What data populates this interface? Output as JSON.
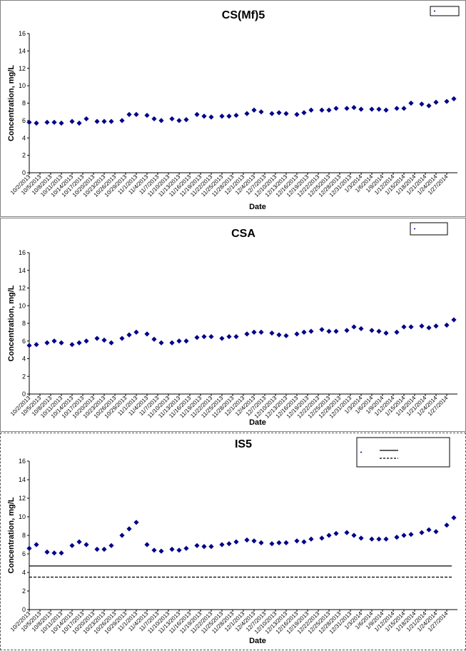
{
  "chart_data": [
    {
      "type": "scatter",
      "title": "CS(Mf)5",
      "xlabel": "Date",
      "ylabel": "Concentration, mg/L",
      "ylim": [
        0,
        16
      ],
      "yticks": [
        0,
        2,
        4,
        6,
        8,
        10,
        12,
        14,
        16
      ],
      "xlim": [
        "10/2/2013",
        "1/30/2014"
      ],
      "x_tick_labels": [
        "10/2/2013",
        "10/5/2013",
        "10/8/2013",
        "10/11/2013",
        "10/14/2013",
        "10/17/2013",
        "10/20/2013",
        "10/23/2013",
        "10/26/2013",
        "10/29/2013",
        "11/1/2013",
        "11/4/2013",
        "11/7/2013",
        "11/10/2013",
        "11/13/2013",
        "11/16/2013",
        "11/19/2013",
        "11/22/2013",
        "11/25/2013",
        "11/28/2013",
        "12/1/2013",
        "12/4/2013",
        "12/7/2013",
        "12/10/2013",
        "12/13/2013",
        "12/16/2013",
        "12/19/2013",
        "12/22/2013",
        "12/25/2013",
        "12/28/2013",
        "12/31/2013",
        "1/3/2014",
        "1/6/2014",
        "1/9/2014",
        "1/12/2014",
        "1/15/2014",
        "1/18/2014",
        "1/21/2014",
        "1/24/2014",
        "1/27/2014"
      ],
      "grid": false,
      "legend_position": "top-right",
      "series": [
        {
          "color": "#00008B",
          "marker": "diamond",
          "points": [
            [
              "10/2/2013",
              5.8
            ],
            [
              "10/4/2013",
              5.7
            ],
            [
              "10/7/2013",
              5.8
            ],
            [
              "10/9/2013",
              5.8
            ],
            [
              "10/11/2013",
              5.7
            ],
            [
              "10/14/2013",
              5.9
            ],
            [
              "10/16/2013",
              5.7
            ],
            [
              "10/18/2013",
              6.2
            ],
            [
              "10/21/2013",
              5.9
            ],
            [
              "10/23/2013",
              5.9
            ],
            [
              "10/25/2013",
              5.9
            ],
            [
              "10/28/2013",
              6.0
            ],
            [
              "10/30/2013",
              6.7
            ],
            [
              "11/1/2013",
              6.7
            ],
            [
              "11/4/2013",
              6.6
            ],
            [
              "11/6/2013",
              6.2
            ],
            [
              "11/8/2013",
              6.0
            ],
            [
              "11/11/2013",
              6.2
            ],
            [
              "11/13/2013",
              6.0
            ],
            [
              "11/15/2013",
              6.1
            ],
            [
              "11/18/2013",
              6.7
            ],
            [
              "11/20/2013",
              6.5
            ],
            [
              "11/22/2013",
              6.4
            ],
            [
              "11/25/2013",
              6.5
            ],
            [
              "11/27/2013",
              6.5
            ],
            [
              "11/29/2013",
              6.6
            ],
            [
              "12/2/2013",
              6.8
            ],
            [
              "12/4/2013",
              7.2
            ],
            [
              "12/6/2013",
              7.0
            ],
            [
              "12/9/2013",
              6.8
            ],
            [
              "12/11/2013",
              6.9
            ],
            [
              "12/13/2013",
              6.8
            ],
            [
              "12/16/2013",
              6.7
            ],
            [
              "12/18/2013",
              6.9
            ],
            [
              "12/20/2013",
              7.2
            ],
            [
              "12/23/2013",
              7.2
            ],
            [
              "12/25/2013",
              7.2
            ],
            [
              "12/27/2013",
              7.4
            ],
            [
              "12/30/2013",
              7.4
            ],
            [
              "1/1/2014",
              7.5
            ],
            [
              "1/3/2014",
              7.3
            ],
            [
              "1/6/2014",
              7.3
            ],
            [
              "1/8/2014",
              7.3
            ],
            [
              "1/10/2014",
              7.2
            ],
            [
              "1/13/2014",
              7.4
            ],
            [
              "1/15/2014",
              7.4
            ],
            [
              "1/17/2014",
              8.0
            ],
            [
              "1/20/2014",
              7.9
            ],
            [
              "1/22/2014",
              7.7
            ],
            [
              "1/24/2014",
              8.1
            ],
            [
              "1/27/2014",
              8.2
            ],
            [
              "1/29/2014",
              8.5
            ]
          ]
        }
      ]
    },
    {
      "type": "scatter",
      "title": "CSA",
      "xlabel": "Date",
      "ylabel": "Concentration, mg/L",
      "ylim": [
        0,
        16
      ],
      "yticks": [
        0,
        2,
        4,
        6,
        8,
        10,
        12,
        14,
        16
      ],
      "xlim": [
        "10/2/2013",
        "1/30/2014"
      ],
      "x_tick_labels": [
        "10/2/2013",
        "10/5/2013",
        "10/8/2013",
        "10/11/2013",
        "10/14/2013",
        "10/17/2013",
        "10/20/2013",
        "10/23/2013",
        "10/26/2013",
        "10/29/2013",
        "11/1/2013",
        "11/4/2013",
        "11/7/2013",
        "11/10/2013",
        "11/13/2013",
        "11/16/2013",
        "11/19/2013",
        "11/22/2013",
        "11/25/2013",
        "11/28/2013",
        "12/1/2013",
        "12/4/2013",
        "12/7/2013",
        "12/10/2013",
        "12/13/2013",
        "12/16/2013",
        "12/19/2013",
        "12/22/2013",
        "12/25/2013",
        "12/28/2013",
        "12/31/2013",
        "1/3/2014",
        "1/6/2014",
        "1/9/2014",
        "1/12/2014",
        "1/15/2014",
        "1/18/2014",
        "1/21/2014",
        "1/24/2014",
        "1/27/2014"
      ],
      "grid": false,
      "legend_position": "top-right",
      "series": [
        {
          "color": "#00008B",
          "marker": "diamond",
          "points": [
            [
              "10/2/2013",
              5.5
            ],
            [
              "10/4/2013",
              5.6
            ],
            [
              "10/7/2013",
              5.8
            ],
            [
              "10/9/2013",
              6.0
            ],
            [
              "10/11/2013",
              5.8
            ],
            [
              "10/14/2013",
              5.6
            ],
            [
              "10/16/2013",
              5.8
            ],
            [
              "10/18/2013",
              6.0
            ],
            [
              "10/21/2013",
              6.3
            ],
            [
              "10/23/2013",
              6.1
            ],
            [
              "10/25/2013",
              5.8
            ],
            [
              "10/28/2013",
              6.3
            ],
            [
              "10/30/2013",
              6.7
            ],
            [
              "11/1/2013",
              7.0
            ],
            [
              "11/4/2013",
              6.8
            ],
            [
              "11/6/2013",
              6.2
            ],
            [
              "11/8/2013",
              5.8
            ],
            [
              "11/11/2013",
              5.8
            ],
            [
              "11/13/2013",
              6.0
            ],
            [
              "11/15/2013",
              6.0
            ],
            [
              "11/18/2013",
              6.4
            ],
            [
              "11/20/2013",
              6.5
            ],
            [
              "11/22/2013",
              6.5
            ],
            [
              "11/25/2013",
              6.3
            ],
            [
              "11/27/2013",
              6.5
            ],
            [
              "11/29/2013",
              6.5
            ],
            [
              "12/2/2013",
              6.8
            ],
            [
              "12/4/2013",
              7.0
            ],
            [
              "12/6/2013",
              7.0
            ],
            [
              "12/9/2013",
              6.9
            ],
            [
              "12/11/2013",
              6.7
            ],
            [
              "12/13/2013",
              6.6
            ],
            [
              "12/16/2013",
              6.8
            ],
            [
              "12/18/2013",
              7.0
            ],
            [
              "12/20/2013",
              7.1
            ],
            [
              "12/23/2013",
              7.3
            ],
            [
              "12/25/2013",
              7.1
            ],
            [
              "12/27/2013",
              7.1
            ],
            [
              "12/30/2013",
              7.2
            ],
            [
              "1/1/2014",
              7.6
            ],
            [
              "1/3/2014",
              7.4
            ],
            [
              "1/6/2014",
              7.2
            ],
            [
              "1/8/2014",
              7.1
            ],
            [
              "1/10/2014",
              6.9
            ],
            [
              "1/13/2014",
              7.0
            ],
            [
              "1/15/2014",
              7.6
            ],
            [
              "1/17/2014",
              7.6
            ],
            [
              "1/20/2014",
              7.7
            ],
            [
              "1/22/2014",
              7.5
            ],
            [
              "1/24/2014",
              7.7
            ],
            [
              "1/27/2014",
              7.8
            ],
            [
              "1/29/2014",
              8.4
            ]
          ]
        }
      ]
    },
    {
      "type": "scatter",
      "title": "IS5",
      "xlabel": "Date",
      "ylabel": "Concentration, mg/L",
      "ylim": [
        0,
        16
      ],
      "yticks": [
        0,
        2,
        4,
        6,
        8,
        10,
        12,
        14,
        16
      ],
      "xlim": [
        "10/2/2013",
        "1/30/2014"
      ],
      "x_tick_labels": [
        "10/2/2013",
        "10/5/2013",
        "10/8/2013",
        "10/11/2013",
        "10/14/2013",
        "10/17/2013",
        "10/20/2013",
        "10/23/2013",
        "10/26/2013",
        "10/29/2013",
        "11/1/2013",
        "11/4/2013",
        "11/7/2013",
        "11/10/2013",
        "11/13/2013",
        "11/16/2013",
        "11/19/2013",
        "11/22/2013",
        "11/25/2013",
        "11/28/2013",
        "12/1/2013",
        "12/4/2013",
        "12/7/2013",
        "12/10/2013",
        "12/13/2013",
        "12/16/2013",
        "12/19/2013",
        "12/22/2013",
        "12/25/2013",
        "12/28/2013",
        "12/31/2013",
        "1/3/2014",
        "1/6/2014",
        "1/9/2014",
        "1/12/2014",
        "1/15/2014",
        "1/18/2014",
        "1/21/2014",
        "1/24/2014",
        "1/27/2014"
      ],
      "grid": false,
      "legend_position": "top-right",
      "reference_lines": [
        {
          "value": 4.7,
          "style": "solid",
          "color": "#000000"
        },
        {
          "value": 3.5,
          "style": "dashed",
          "color": "#000000"
        }
      ],
      "series": [
        {
          "color": "#00008B",
          "marker": "diamond",
          "points": [
            [
              "10/2/2013",
              6.6
            ],
            [
              "10/4/2013",
              7.0
            ],
            [
              "10/7/2013",
              6.2
            ],
            [
              "10/9/2013",
              6.1
            ],
            [
              "10/11/2013",
              6.1
            ],
            [
              "10/14/2013",
              6.9
            ],
            [
              "10/16/2013",
              7.3
            ],
            [
              "10/18/2013",
              7.0
            ],
            [
              "10/21/2013",
              6.5
            ],
            [
              "10/23/2013",
              6.5
            ],
            [
              "10/25/2013",
              6.9
            ],
            [
              "10/28/2013",
              8.0
            ],
            [
              "10/30/2013",
              8.7
            ],
            [
              "11/1/2013",
              9.4
            ],
            [
              "11/4/2013",
              7.0
            ],
            [
              "11/6/2013",
              6.4
            ],
            [
              "11/8/2013",
              6.3
            ],
            [
              "11/11/2013",
              6.5
            ],
            [
              "11/13/2013",
              6.4
            ],
            [
              "11/15/2013",
              6.6
            ],
            [
              "11/18/2013",
              6.9
            ],
            [
              "11/20/2013",
              6.8
            ],
            [
              "11/22/2013",
              6.8
            ],
            [
              "11/25/2013",
              7.0
            ],
            [
              "11/27/2013",
              7.1
            ],
            [
              "11/29/2013",
              7.3
            ],
            [
              "12/2/2013",
              7.5
            ],
            [
              "12/4/2013",
              7.4
            ],
            [
              "12/6/2013",
              7.2
            ],
            [
              "12/9/2013",
              7.1
            ],
            [
              "12/11/2013",
              7.2
            ],
            [
              "12/13/2013",
              7.2
            ],
            [
              "12/16/2013",
              7.4
            ],
            [
              "12/18/2013",
              7.3
            ],
            [
              "12/20/2013",
              7.6
            ],
            [
              "12/23/2013",
              7.7
            ],
            [
              "12/25/2013",
              8.0
            ],
            [
              "12/27/2013",
              8.2
            ],
            [
              "12/30/2013",
              8.3
            ],
            [
              "1/1/2014",
              8.0
            ],
            [
              "1/3/2014",
              7.7
            ],
            [
              "1/6/2014",
              7.6
            ],
            [
              "1/8/2014",
              7.6
            ],
            [
              "1/10/2014",
              7.6
            ],
            [
              "1/13/2014",
              7.8
            ],
            [
              "1/15/2014",
              8.0
            ],
            [
              "1/17/2014",
              8.1
            ],
            [
              "1/20/2014",
              8.3
            ],
            [
              "1/22/2014",
              8.6
            ],
            [
              "1/24/2014",
              8.4
            ],
            [
              "1/27/2014",
              9.1
            ],
            [
              "1/29/2014",
              9.9
            ]
          ]
        }
      ]
    }
  ]
}
